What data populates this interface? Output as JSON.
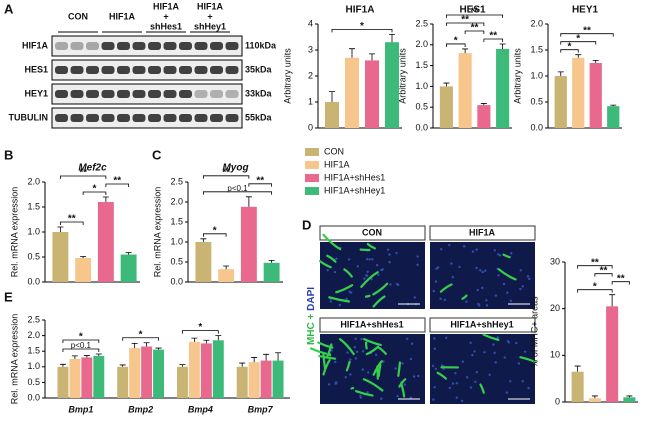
{
  "figure": {
    "panels": [
      "A",
      "B",
      "C",
      "D",
      "E"
    ],
    "blot": {
      "groups": [
        [
          "CON"
        ],
        [
          "HIF1A"
        ],
        [
          "HIF1A",
          "+",
          "shHes1"
        ],
        [
          "HIF1A",
          "+",
          "shHey1"
        ]
      ],
      "rows": [
        {
          "protein": "HIF1A",
          "size": "110kDa"
        },
        {
          "protein": "HES1",
          "size": "35kDa"
        },
        {
          "protein": "HEY1",
          "size": "33kDa"
        },
        {
          "protein": "TUBULIN",
          "size": "55kDa"
        }
      ]
    },
    "microscopy": {
      "stain": [
        "MHC",
        "+",
        "DAPI"
      ],
      "conditions": [
        "CON",
        "HIF1A",
        "HIF1A+shHes1",
        "HIF1A+shHey1"
      ]
    }
  },
  "chart_data": [
    {
      "type": "bar",
      "title": "HIF1A",
      "ylabel": "Arbitrary units",
      "ylim": [
        0,
        4
      ],
      "yticks": [
        0,
        1,
        2,
        3,
        4
      ],
      "values": [
        1.0,
        2.7,
        2.6,
        3.3
      ],
      "errors": [
        0.4,
        0.35,
        0.25,
        0.3
      ],
      "annotations": [
        {
          "text": "*",
          "from": 0,
          "to": 3
        }
      ]
    },
    {
      "type": "bar",
      "title": "HES1",
      "ylabel": "Arbitrary units",
      "ylim": [
        0,
        2.5
      ],
      "yticks": [
        {
          "value": 0,
          "label": "0.0"
        },
        {
          "value": 0.5,
          "label": "0.5"
        },
        {
          "value": 1,
          "label": "1.0"
        },
        {
          "value": 1.5,
          "label": "1.5"
        },
        {
          "value": 2,
          "label": "2.0"
        },
        {
          "value": 2.5,
          "label": "2.5"
        }
      ],
      "values": [
        1.0,
        1.8,
        0.55,
        1.9
      ],
      "errors": [
        0.08,
        0.1,
        0.04,
        0.12
      ],
      "annotations": [
        {
          "text": "*",
          "from": 0,
          "to": 1
        },
        {
          "text": "**",
          "from": 2,
          "to": 3
        },
        {
          "text": "**",
          "from": 1,
          "to": 2
        },
        {
          "text": "**",
          "from": 0,
          "to": 2
        },
        {
          "text": "**",
          "from": 0,
          "to": 3
        }
      ]
    },
    {
      "type": "bar",
      "title": "HEY1",
      "ylabel": "Arbitrary units",
      "ylim": [
        0,
        2
      ],
      "yticks": [
        {
          "value": 0,
          "label": "0.0"
        },
        {
          "value": 0.5,
          "label": "0.5"
        },
        {
          "value": 1,
          "label": "1.0"
        },
        {
          "value": 1.5,
          "label": "1.5"
        },
        {
          "value": 2,
          "label": "2.0"
        }
      ],
      "values": [
        1.0,
        1.35,
        1.25,
        0.42
      ],
      "errors": [
        0.08,
        0.06,
        0.05,
        0.02
      ],
      "annotations": [
        {
          "text": "*",
          "from": 0,
          "to": 1
        },
        {
          "text": "*",
          "from": 0,
          "to": 2
        },
        {
          "text": "**",
          "from": 0,
          "to": 3
        }
      ]
    },
    {
      "type": "bar",
      "title": "Mef2c",
      "ylabel": "Rel. mRNA expression",
      "ylim": [
        0,
        2
      ],
      "yticks": [
        {
          "value": 0,
          "label": "0.0"
        },
        {
          "value": 0.5,
          "label": "0.5"
        },
        {
          "value": 1,
          "label": "1.0"
        },
        {
          "value": 1.5,
          "label": "1.5"
        },
        {
          "value": 2,
          "label": "2.0"
        }
      ],
      "values": [
        1.0,
        0.48,
        1.6,
        0.55
      ],
      "errors": [
        0.1,
        0.03,
        0.1,
        0.04
      ],
      "annotations": [
        {
          "text": "**",
          "from": 0,
          "to": 1
        },
        {
          "text": "*",
          "from": 1,
          "to": 2
        },
        {
          "text": "**",
          "from": 2,
          "to": 3
        },
        {
          "text": "**",
          "from": 0,
          "to": 2
        }
      ]
    },
    {
      "type": "bar",
      "title": "Myog",
      "ylabel": "Rel. mRNA expression",
      "ylim": [
        0,
        2.5
      ],
      "yticks": [
        {
          "value": 0,
          "label": "0.0"
        },
        {
          "value": 0.5,
          "label": "0.5"
        },
        {
          "value": 1,
          "label": "1.0"
        },
        {
          "value": 1.5,
          "label": "1.5"
        },
        {
          "value": 2,
          "label": "2.0"
        },
        {
          "value": 2.5,
          "label": "2.5"
        }
      ],
      "values": [
        1.0,
        0.32,
        1.88,
        0.48
      ],
      "errors": [
        0.08,
        0.08,
        0.25,
        0.06
      ],
      "annotations": [
        {
          "text": "*",
          "from": 0,
          "to": 1
        },
        {
          "text": "p<0.1",
          "from": 0,
          "to": 3
        },
        {
          "text": "**",
          "from": 2,
          "to": 3
        },
        {
          "text": "**",
          "from": 0,
          "to": 2
        }
      ]
    },
    {
      "type": "grouped-bar",
      "ylabel": "Rel. mRNA expression",
      "ylim": [
        0,
        2.5
      ],
      "yticks": [
        {
          "value": 0,
          "label": "0.0"
        },
        {
          "value": 0.5,
          "label": "0.5"
        },
        {
          "value": 1,
          "label": "1.0"
        },
        {
          "value": 1.5,
          "label": "1.5"
        },
        {
          "value": 2,
          "label": "2.0"
        },
        {
          "value": 2.5,
          "label": "2.5"
        }
      ],
      "categories": [
        "Bmp1",
        "Bmp2",
        "Bmp4",
        "Bmp7"
      ],
      "series": [
        {
          "name": "CON",
          "color": "#c9b474",
          "values": [
            1.0,
            1.0,
            1.0,
            1.0
          ],
          "errors": [
            0.08,
            0.06,
            0.07,
            0.12
          ]
        },
        {
          "name": "HIF1A",
          "color": "#f7c68c",
          "values": [
            1.25,
            1.6,
            1.8,
            1.15
          ],
          "errors": [
            0.1,
            0.15,
            0.12,
            0.15
          ]
        },
        {
          "name": "HIF1A+shHes1",
          "color": "#e9698e",
          "values": [
            1.3,
            1.65,
            1.75,
            1.2
          ],
          "errors": [
            0.06,
            0.12,
            0.1,
            0.2
          ]
        },
        {
          "name": "HIF1A+shHey1",
          "color": "#3dba79",
          "values": [
            1.35,
            1.55,
            1.85,
            1.2
          ],
          "errors": [
            0.06,
            0.05,
            0.15,
            0.25
          ]
        }
      ],
      "annotations": [
        {
          "text": "p<0.1",
          "category": 0
        },
        {
          "text": "*",
          "category": 0
        },
        {
          "text": "*",
          "category": 1
        },
        {
          "text": "*",
          "category": 2
        }
      ]
    },
    {
      "type": "bar",
      "ylabel": "% of MHC+ areas",
      "ylim": [
        0,
        30
      ],
      "yticks": [
        0,
        10,
        20,
        30
      ],
      "values": [
        6.5,
        0.8,
        20.5,
        1.0
      ],
      "errors": [
        1.2,
        0.5,
        2.5,
        0.3
      ],
      "annotations": [
        {
          "text": "*",
          "from": 0,
          "to": 2
        },
        {
          "text": "**",
          "from": 2,
          "to": 3
        },
        {
          "text": "**",
          "from": 1,
          "to": 2
        },
        {
          "text": "**",
          "from": 0,
          "to": 2
        }
      ]
    }
  ]
}
